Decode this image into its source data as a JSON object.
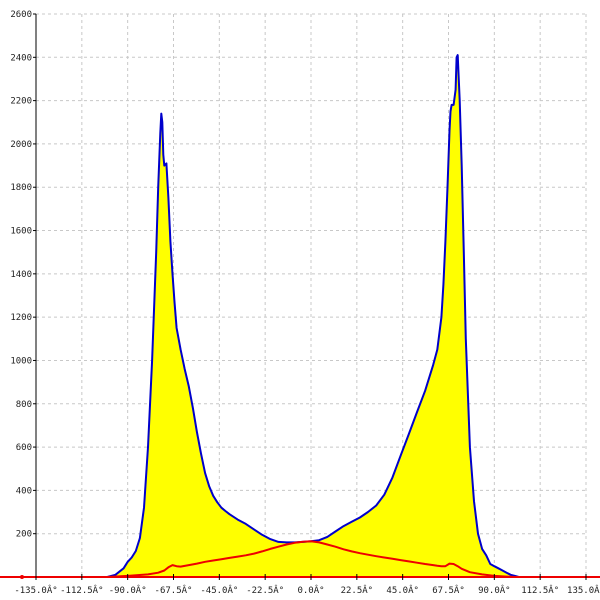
{
  "chart_data": {
    "type": "area",
    "title": "",
    "xlabel": "",
    "ylabel": "",
    "xlim": [
      -135,
      135
    ],
    "ylim": [
      0,
      2600
    ],
    "grid": true,
    "x_ticks": [
      -135,
      -112.5,
      -90,
      -67.5,
      -45,
      -22.5,
      0,
      22.5,
      45,
      67.5,
      90,
      112.5,
      135
    ],
    "x_tick_labels": [
      "-135.0Â°",
      "-112.5Â°",
      "-90.0Â°",
      "-67.5Â°",
      "-45.0Â°",
      "-22.5Â°",
      "0.0Â°",
      "22.5Â°",
      "45.0Â°",
      "67.5Â°",
      "90.0Â°",
      "112.5Â°",
      "135.0Â°"
    ],
    "y_ticks": [
      200,
      400,
      600,
      800,
      1000,
      1200,
      1400,
      1600,
      1800,
      2000,
      2200,
      2400,
      2600
    ],
    "y_tick_labels": [
      "200",
      "400",
      "600",
      "800",
      "1000",
      "1200",
      "1400",
      "1600",
      "1800",
      "2000",
      "2200",
      "2400",
      "2600"
    ],
    "series": [
      {
        "color": "#0000cc",
        "fill": "#ffff00",
        "x": [
          -100,
          -96,
          -92,
          -90,
          -88,
          -86,
          -84,
          -82,
          -80,
          -78,
          -76,
          -75,
          -74,
          -73.5,
          -73,
          -72.5,
          -72,
          -71,
          -70,
          -69,
          -68,
          -67,
          -66,
          -64,
          -62,
          -60,
          -58,
          -56,
          -54,
          -52,
          -50,
          -48,
          -46,
          -44,
          -42,
          -40,
          -36,
          -32,
          -28,
          -24,
          -20,
          -16,
          -12,
          -8,
          -4,
          0,
          4,
          8,
          12,
          16,
          20,
          24,
          28,
          32,
          36,
          40,
          44,
          48,
          52,
          56,
          60,
          62,
          64,
          65,
          66,
          67,
          68,
          68.5,
          69,
          70,
          71,
          71.5,
          72,
          73,
          74,
          75,
          76,
          78,
          80,
          82,
          84,
          86,
          88,
          90,
          92,
          94,
          96,
          98,
          100,
          102
        ],
        "values": [
          0,
          10,
          40,
          70,
          90,
          120,
          180,
          320,
          600,
          1000,
          1500,
          1800,
          2050,
          2140,
          2100,
          1950,
          1900,
          1910,
          1750,
          1550,
          1400,
          1270,
          1150,
          1050,
          960,
          880,
          780,
          670,
          570,
          480,
          420,
          375,
          345,
          320,
          305,
          290,
          265,
          245,
          220,
          195,
          175,
          162,
          160,
          160,
          162,
          165,
          170,
          185,
          210,
          235,
          255,
          275,
          300,
          330,
          380,
          460,
          560,
          660,
          760,
          860,
          980,
          1050,
          1200,
          1350,
          1550,
          1800,
          2060,
          2150,
          2180,
          2180,
          2250,
          2400,
          2410,
          2200,
          1900,
          1500,
          1100,
          600,
          350,
          200,
          130,
          100,
          60,
          50,
          40,
          30,
          20,
          10,
          5,
          0
        ]
      },
      {
        "color": "#ee0000",
        "x": [
          -135,
          -100,
          -90,
          -80,
          -75,
          -72,
          -70,
          -68,
          -66,
          -64,
          -60,
          -56,
          -52,
          -48,
          -44,
          -40,
          -36,
          -32,
          -28,
          -24,
          -20,
          -16,
          -12,
          -8,
          -4,
          0,
          4,
          8,
          12,
          16,
          20,
          24,
          28,
          32,
          36,
          40,
          44,
          48,
          52,
          56,
          60,
          62,
          64,
          66,
          68,
          70,
          72,
          74,
          78,
          84,
          90,
          100,
          135
        ],
        "values": [
          0,
          0,
          5,
          12,
          20,
          30,
          45,
          55,
          50,
          48,
          55,
          62,
          70,
          76,
          82,
          88,
          94,
          100,
          108,
          118,
          130,
          140,
          150,
          158,
          163,
          165,
          160,
          150,
          140,
          128,
          118,
          110,
          103,
          96,
          90,
          84,
          78,
          72,
          66,
          60,
          55,
          52,
          50,
          50,
          62,
          60,
          50,
          38,
          22,
          12,
          5,
          0,
          0
        ]
      }
    ]
  }
}
